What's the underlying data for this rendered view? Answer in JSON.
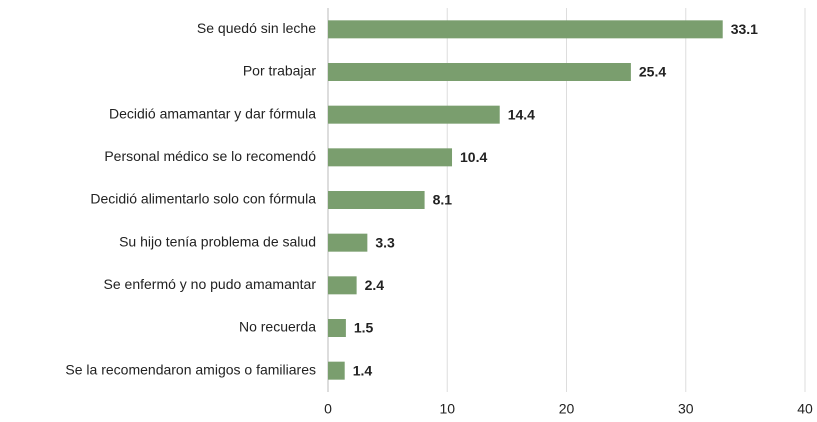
{
  "chart_data": {
    "type": "barh",
    "categories": [
      "Se quedó sin leche",
      "Por trabajar",
      "Decidió amamantar y dar fórmula",
      "Personal médico se lo recomendó",
      "Decidió alimentarlo solo con fórmula",
      "Su hijo tenía problema de salud",
      "Se enfermó y no pudo amamantar",
      "No recuerda",
      "Se la recomendaron amigos o familiares"
    ],
    "values": [
      33.1,
      25.4,
      14.4,
      10.4,
      8.1,
      3.3,
      2.4,
      1.5,
      1.4
    ],
    "color": "#7a9e6e",
    "xlim": [
      0,
      40
    ],
    "xticks": [
      0,
      10,
      20,
      30,
      40
    ],
    "grid": true
  }
}
